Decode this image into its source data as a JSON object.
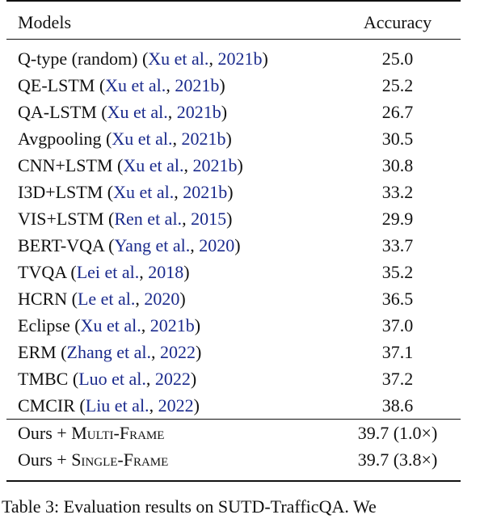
{
  "table": {
    "header": {
      "models": "Models",
      "accuracy": "Accuracy"
    },
    "baselines": [
      {
        "name": "Q-type (random) (",
        "cite_authors": "Xu et al.",
        "cite_sep": ", ",
        "cite_year": "2021b",
        "close": ")",
        "accuracy": "25.0"
      },
      {
        "name": "QE-LSTM (",
        "cite_authors": "Xu et al.",
        "cite_sep": ", ",
        "cite_year": "2021b",
        "close": ")",
        "accuracy": "25.2"
      },
      {
        "name": "QA-LSTM (",
        "cite_authors": "Xu et al.",
        "cite_sep": ", ",
        "cite_year": "2021b",
        "close": ")",
        "accuracy": "26.7"
      },
      {
        "name": "Avgpooling (",
        "cite_authors": "Xu et al.",
        "cite_sep": ", ",
        "cite_year": "2021b",
        "close": ")",
        "accuracy": "30.5"
      },
      {
        "name": "CNN+LSTM (",
        "cite_authors": "Xu et al.",
        "cite_sep": ", ",
        "cite_year": "2021b",
        "close": ")",
        "accuracy": "30.8"
      },
      {
        "name": "I3D+LSTM (",
        "cite_authors": "Xu et al.",
        "cite_sep": ", ",
        "cite_year": "2021b",
        "close": ")",
        "accuracy": "33.2"
      },
      {
        "name": "VIS+LSTM (",
        "cite_authors": "Ren et al.",
        "cite_sep": ", ",
        "cite_year": "2015",
        "close": ")",
        "accuracy": "29.9"
      },
      {
        "name": "BERT-VQA (",
        "cite_authors": "Yang et al.",
        "cite_sep": ", ",
        "cite_year": "2020",
        "close": ")",
        "accuracy": "33.7"
      },
      {
        "name": "TVQA (",
        "cite_authors": "Lei et al.",
        "cite_sep": ", ",
        "cite_year": "2018",
        "close": ")",
        "accuracy": "35.2"
      },
      {
        "name": "HCRN (",
        "cite_authors": "Le et al.",
        "cite_sep": ", ",
        "cite_year": "2020",
        "close": ")",
        "accuracy": "36.5"
      },
      {
        "name": "Eclipse (",
        "cite_authors": "Xu et al.",
        "cite_sep": ", ",
        "cite_year": "2021b",
        "close": ")",
        "accuracy": "37.0"
      },
      {
        "name": "ERM (",
        "cite_authors": "Zhang et al.",
        "cite_sep": ", ",
        "cite_year": "2022",
        "close": ")",
        "accuracy": "37.1"
      },
      {
        "name": "TMBC (",
        "cite_authors": "Luo et al.",
        "cite_sep": ", ",
        "cite_year": "2022",
        "close": ")",
        "accuracy": "37.2"
      },
      {
        "name": "CMCIR (",
        "cite_authors": "Liu et al.",
        "cite_sep": ", ",
        "cite_year": "2022",
        "close": ")",
        "accuracy": "38.6"
      }
    ],
    "ours": [
      {
        "prefix": "Ours + ",
        "method": "Multi-Frame",
        "accuracy": "39.7 (1.0×)"
      },
      {
        "prefix": "Ours + ",
        "method": "Single-Frame",
        "accuracy": "39.7 (3.8×)"
      }
    ]
  },
  "caption": "Table 3: Evaluation results on SUTD-TrafficQA. We"
}
